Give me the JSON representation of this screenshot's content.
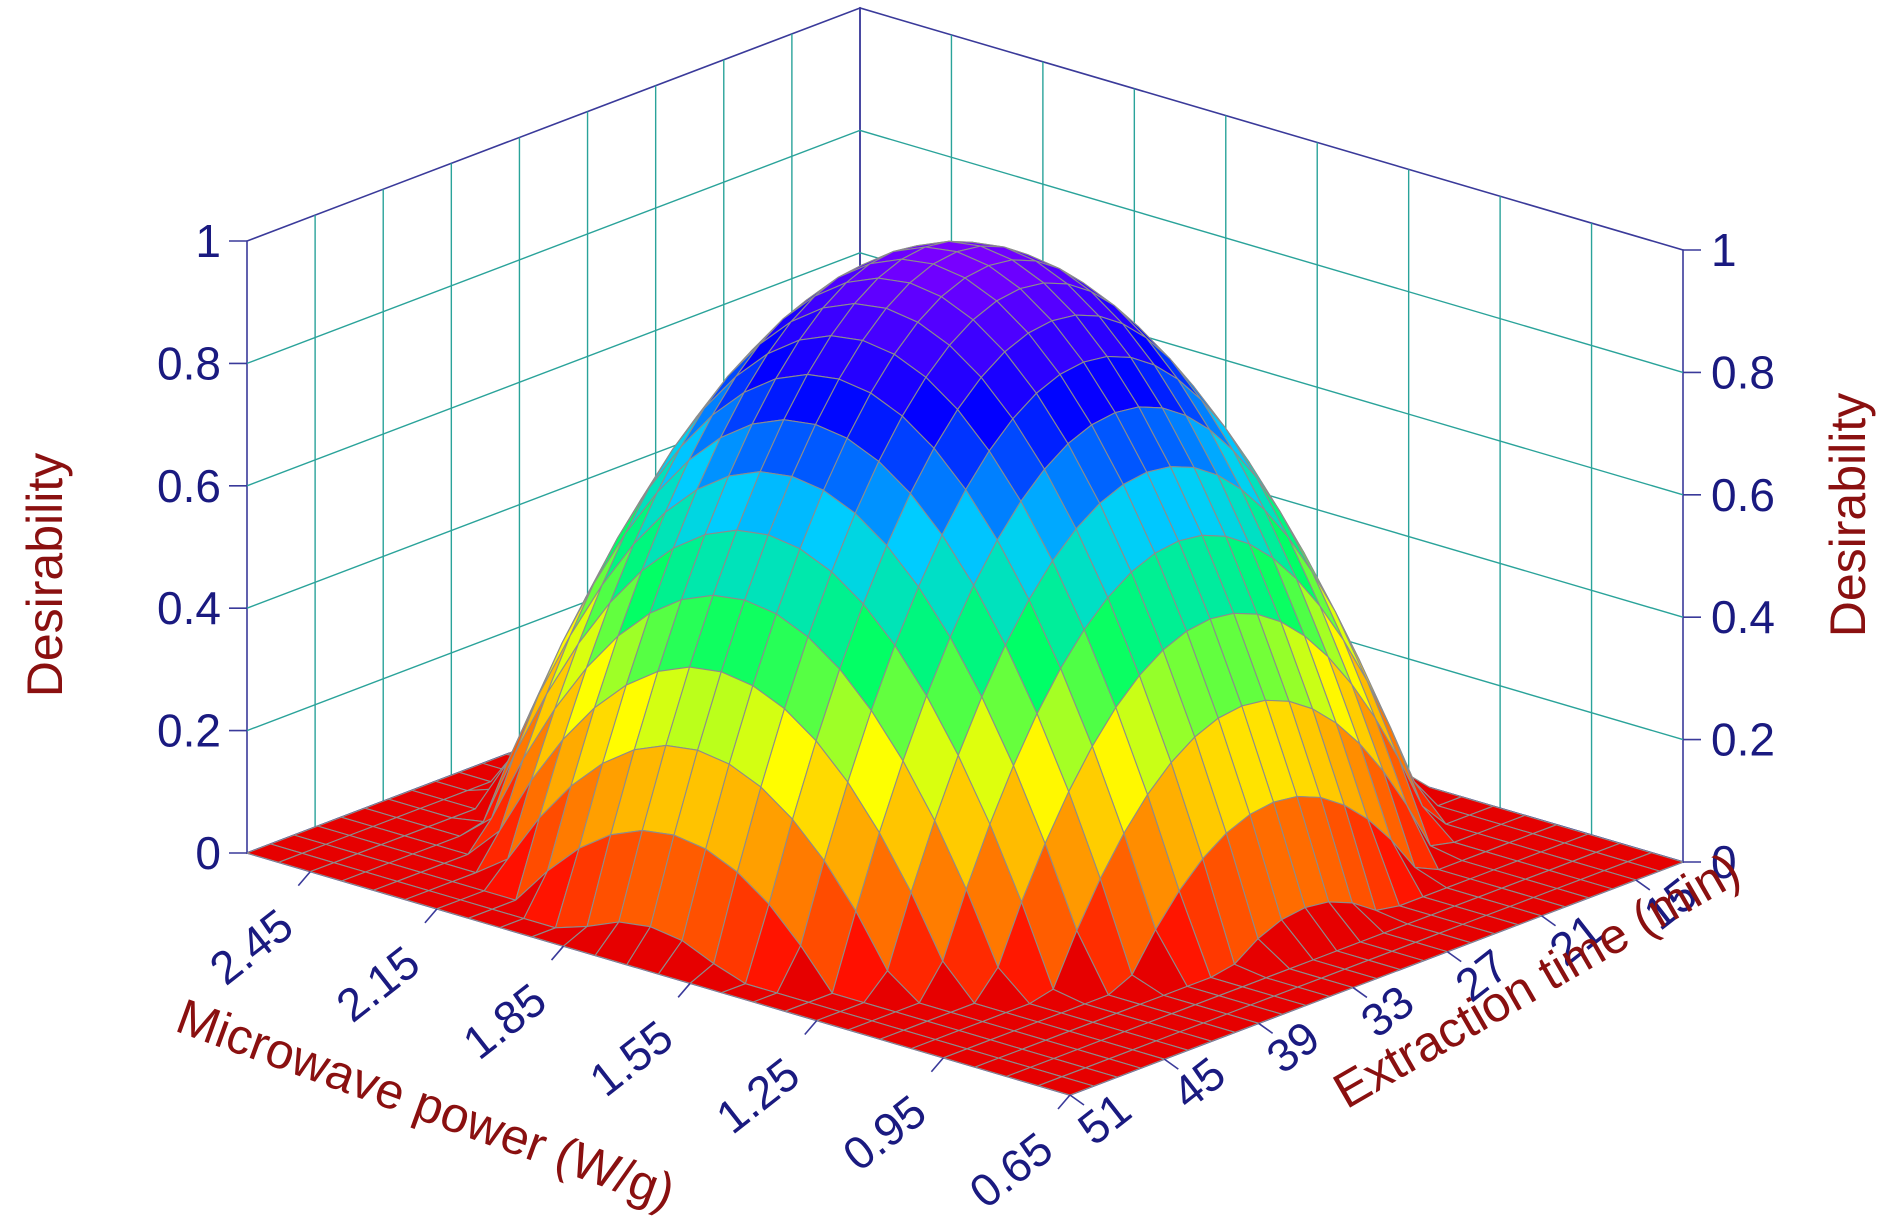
{
  "chart_data": {
    "type": "surface3d",
    "title": "",
    "x_axis": {
      "label": "Microwave power (W/g)",
      "ticks": [
        0.65,
        0.95,
        1.25,
        1.55,
        1.85,
        2.15,
        2.45
      ],
      "tick_labels": [
        "0.65",
        "0.95",
        "1.25",
        "1.55",
        "1.85",
        "2.15",
        "2.45"
      ],
      "range": [
        0.65,
        2.6
      ]
    },
    "y_axis": {
      "label": "Extraction time (min)",
      "ticks": [
        15,
        21,
        27,
        33,
        39,
        45,
        51
      ],
      "tick_labels": [
        "15",
        "21",
        "27",
        "33",
        "39",
        "45",
        "51"
      ],
      "range": [
        12,
        51
      ]
    },
    "z_axis": {
      "label": "Desirability",
      "ticks": [
        0,
        0.2,
        0.4,
        0.6,
        0.8,
        1
      ],
      "tick_labels": [
        "0",
        "0.2",
        "0.4",
        "0.6",
        "0.8",
        "1"
      ],
      "range": [
        0,
        1
      ]
    },
    "surface_model": {
      "form": "quadratic",
      "optimum_power_w_per_g": 1.7,
      "optimum_time_min": 30,
      "max_desirability": 0.96
    },
    "contour_projection_on_floor": true,
    "colormap": [
      "#7a00ff",
      "#0000ff",
      "#00ccff",
      "#00ff66",
      "#ffff00",
      "#ff8000",
      "#ff0000"
    ]
  }
}
